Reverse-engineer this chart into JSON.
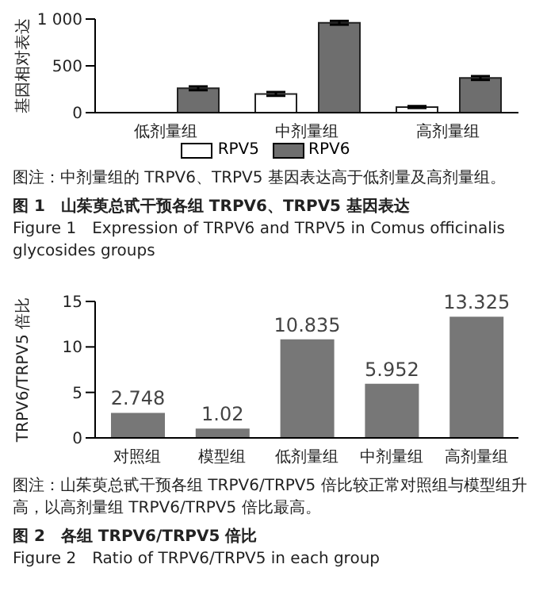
{
  "chart_data": [
    {
      "type": "bar",
      "ylabel": "基因相对表达",
      "categories": [
        "低剂量组",
        "中剂量组",
        "高剂量组"
      ],
      "series": [
        {
          "name": "RPV5",
          "color": "#ffffff",
          "values": [
            0,
            200,
            60
          ],
          "errors": [
            null,
            20,
            10
          ]
        },
        {
          "name": "RPV6",
          "color": "#6e6e6e",
          "values": [
            260,
            960,
            370
          ],
          "errors": [
            20,
            20,
            20
          ]
        }
      ],
      "ylim": [
        0,
        1000
      ],
      "yticks": [
        0,
        500,
        {
          "value": 1000,
          "label": "1 000"
        }
      ],
      "legend": "bottom",
      "annotations": [
        "图注：中剂量组的 TRPV6、TRPV5 基因表达高于低剂量及高剂量组。",
        "图 1　山茱萸总甙干预各组 TRPV6、TRPV5 基因表达",
        "Figure 1　Expression of TRPV6 and TRPV5 in Comus officinalis glycosides groups"
      ]
    },
    {
      "type": "bar",
      "ylabel": "TRPV6/TRPV5 倍比",
      "categories": [
        "对照组",
        "模型组",
        "低剂量组",
        "中剂量组",
        "高剂量组"
      ],
      "values": [
        2.748,
        1.02,
        10.835,
        5.952,
        13.325
      ],
      "color": "#777777",
      "data_labels": true,
      "ylim": [
        0,
        15
      ],
      "yticks": [
        0,
        5,
        10,
        15
      ],
      "annotations": [
        "图注：山茱萸总甙干预各组 TRPV6/TRPV5 倍比较正常对照组与模型组升高，以高剂量组 TRPV6/TRPV5 倍比最高。",
        "图 2　各组 TRPV6/TRPV5 倍比",
        "Figure 2　Ratio of TRPV6/TRPV5 in each group"
      ]
    }
  ]
}
